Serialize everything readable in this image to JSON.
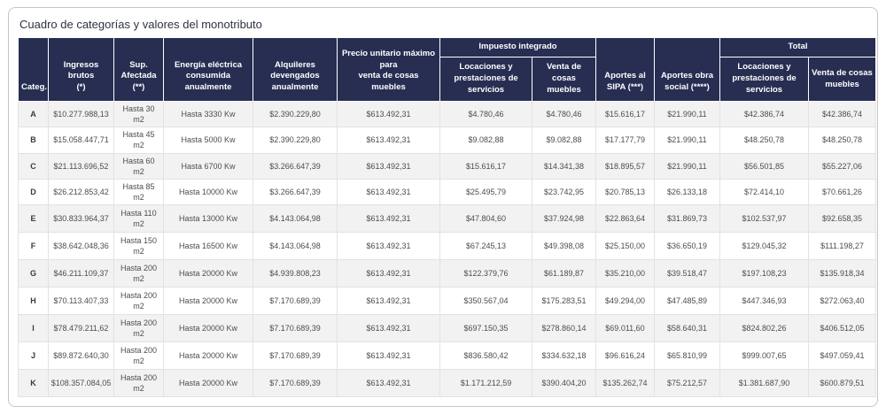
{
  "card": {
    "title": "Cuadro de categorías y valores del monotributo"
  },
  "colors": {
    "header_bg": "#272e52",
    "header_fg": "#ffffff",
    "stripe": "#f2f2f2",
    "cell_border": "#e2e2e2",
    "body_fg": "#4d4d4d",
    "title_fg": "#2d3246",
    "card_border": "#c6c6c6"
  },
  "table": {
    "header": {
      "categ": "Categ.",
      "ingresos_brutos": "Ingresos brutos\n(*)",
      "sup_afectada": "Sup.\nAfectada\n(**)",
      "energia": "Energía eléctrica\nconsumida anualmente",
      "alquileres": "Alquileres\ndevengados\nanualmente",
      "precio_unitario": "Precio unitario máximo para\nventa de cosas muebles",
      "impuesto_integrado": "Impuesto integrado",
      "impuesto_locaciones": "Locaciones y\nprestaciones de\nservicios",
      "impuesto_venta": "Venta de cosas\nmuebles",
      "aportes_sipa": "Aportes al\nSIPA (***)",
      "aportes_obra_social": "Aportes obra\nsocial (****)",
      "total": "Total",
      "total_locaciones": "Locaciones y\nprestaciones de\nservicios",
      "total_venta": "Venta de cosas\nmuebles"
    },
    "col_keys": [
      "categ",
      "ingresos_brutos",
      "sup_afectada",
      "energia",
      "alquileres",
      "precio_unitario",
      "impuesto_locaciones",
      "impuesto_venta",
      "aportes_sipa",
      "aportes_obra_social",
      "total_locaciones",
      "total_venta"
    ],
    "rows": [
      {
        "categ": "A",
        "ingresos_brutos": "$10.277.988,13",
        "sup_afectada": "Hasta 30 m2",
        "energia": "Hasta 3330 Kw",
        "alquileres": "$2.390.229,80",
        "precio_unitario": "$613.492,31",
        "impuesto_locaciones": "$4.780,46",
        "impuesto_venta": "$4.780,46",
        "aportes_sipa": "$15.616,17",
        "aportes_obra_social": "$21.990,11",
        "total_locaciones": "$42.386,74",
        "total_venta": "$42.386,74"
      },
      {
        "categ": "B",
        "ingresos_brutos": "$15.058.447,71",
        "sup_afectada": "Hasta 45 m2",
        "energia": "Hasta 5000 Kw",
        "alquileres": "$2.390.229,80",
        "precio_unitario": "$613.492,31",
        "impuesto_locaciones": "$9.082,88",
        "impuesto_venta": "$9.082,88",
        "aportes_sipa": "$17.177,79",
        "aportes_obra_social": "$21.990,11",
        "total_locaciones": "$48.250,78",
        "total_venta": "$48.250,78"
      },
      {
        "categ": "C",
        "ingresos_brutos": "$21.113.696,52",
        "sup_afectada": "Hasta 60 m2",
        "energia": "Hasta 6700 Kw",
        "alquileres": "$3.266.647,39",
        "precio_unitario": "$613.492,31",
        "impuesto_locaciones": "$15.616,17",
        "impuesto_venta": "$14.341,38",
        "aportes_sipa": "$18.895,57",
        "aportes_obra_social": "$21.990,11",
        "total_locaciones": "$56.501,85",
        "total_venta": "$55.227,06"
      },
      {
        "categ": "D",
        "ingresos_brutos": "$26.212.853,42",
        "sup_afectada": "Hasta 85 m2",
        "energia": "Hasta 10000 Kw",
        "alquileres": "$3.266.647,39",
        "precio_unitario": "$613.492,31",
        "impuesto_locaciones": "$25.495,79",
        "impuesto_venta": "$23.742,95",
        "aportes_sipa": "$20.785,13",
        "aportes_obra_social": "$26.133,18",
        "total_locaciones": "$72.414,10",
        "total_venta": "$70.661,26"
      },
      {
        "categ": "E",
        "ingresos_brutos": "$30.833.964,37",
        "sup_afectada": "Hasta 110\nm2",
        "energia": "Hasta 13000 Kw",
        "alquileres": "$4.143.064,98",
        "precio_unitario": "$613.492,31",
        "impuesto_locaciones": "$47.804,60",
        "impuesto_venta": "$37.924,98",
        "aportes_sipa": "$22.863,64",
        "aportes_obra_social": "$31.869,73",
        "total_locaciones": "$102.537,97",
        "total_venta": "$92.658,35"
      },
      {
        "categ": "F",
        "ingresos_brutos": "$38.642.048,36",
        "sup_afectada": "Hasta 150\nm2",
        "energia": "Hasta 16500 Kw",
        "alquileres": "$4.143.064,98",
        "precio_unitario": "$613.492,31",
        "impuesto_locaciones": "$67.245,13",
        "impuesto_venta": "$49.398,08",
        "aportes_sipa": "$25.150,00",
        "aportes_obra_social": "$36.650,19",
        "total_locaciones": "$129.045,32",
        "total_venta": "$111.198,27"
      },
      {
        "categ": "G",
        "ingresos_brutos": "$46.211.109,37",
        "sup_afectada": "Hasta 200\nm2",
        "energia": "Hasta 20000 Kw",
        "alquileres": "$4.939.808,23",
        "precio_unitario": "$613.492,31",
        "impuesto_locaciones": "$122.379,76",
        "impuesto_venta": "$61.189,87",
        "aportes_sipa": "$35.210,00",
        "aportes_obra_social": "$39.518,47",
        "total_locaciones": "$197.108,23",
        "total_venta": "$135.918,34"
      },
      {
        "categ": "H",
        "ingresos_brutos": "$70.113.407,33",
        "sup_afectada": "Hasta 200\nm2",
        "energia": "Hasta 20000 Kw",
        "alquileres": "$7.170.689,39",
        "precio_unitario": "$613.492,31",
        "impuesto_locaciones": "$350.567,04",
        "impuesto_venta": "$175.283,51",
        "aportes_sipa": "$49.294,00",
        "aportes_obra_social": "$47.485,89",
        "total_locaciones": "$447.346,93",
        "total_venta": "$272.063,40"
      },
      {
        "categ": "I",
        "ingresos_brutos": "$78.479.211,62",
        "sup_afectada": "Hasta 200\nm2",
        "energia": "Hasta 20000 Kw",
        "alquileres": "$7.170.689,39",
        "precio_unitario": "$613.492,31",
        "impuesto_locaciones": "$697.150,35",
        "impuesto_venta": "$278.860,14",
        "aportes_sipa": "$69.011,60",
        "aportes_obra_social": "$58.640,31",
        "total_locaciones": "$824.802,26",
        "total_venta": "$406.512,05"
      },
      {
        "categ": "J",
        "ingresos_brutos": "$89.872.640,30",
        "sup_afectada": "Hasta 200\nm2",
        "energia": "Hasta 20000 Kw",
        "alquileres": "$7.170.689,39",
        "precio_unitario": "$613.492,31",
        "impuesto_locaciones": "$836.580,42",
        "impuesto_venta": "$334.632,18",
        "aportes_sipa": "$96.616,24",
        "aportes_obra_social": "$65.810,99",
        "total_locaciones": "$999.007,65",
        "total_venta": "$497.059,41"
      },
      {
        "categ": "K",
        "ingresos_brutos": "$108.357.084,05",
        "sup_afectada": "Hasta 200\nm2",
        "energia": "Hasta 20000 Kw",
        "alquileres": "$7.170.689,39",
        "precio_unitario": "$613.492,31",
        "impuesto_locaciones": "$1.171.212,59",
        "impuesto_venta": "$390.404,20",
        "aportes_sipa": "$135.262,74",
        "aportes_obra_social": "$75.212,57",
        "total_locaciones": "$1.381.687,90",
        "total_venta": "$600.879,51"
      }
    ]
  }
}
